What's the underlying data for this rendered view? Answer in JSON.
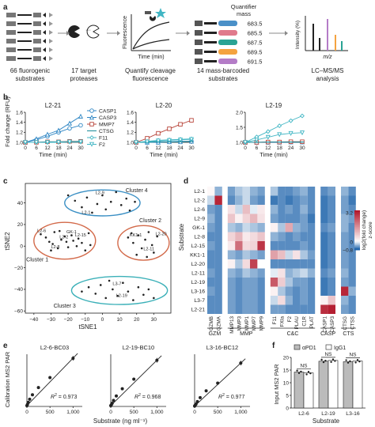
{
  "panel_a": {
    "letter": "a",
    "substrates_label": [
      "66 fluorogenic",
      "substrates"
    ],
    "proteases_label": [
      "17 target",
      "proteases"
    ],
    "fluor_label": [
      "Quantify cleavage",
      "fluorescence"
    ],
    "fluor_ylabel": "Fluorescence",
    "fluor_xlabel": "Time (min)",
    "mass_header": [
      "Quantifier",
      "mass"
    ],
    "masses": [
      "683.5",
      "685.5",
      "687.5",
      "689.5",
      "691.5"
    ],
    "mass_colors": [
      "#4a90c8",
      "#e07a8c",
      "#2aa394",
      "#f4a340",
      "#b47cc7"
    ],
    "barcoded_label": [
      "14 mass-barcoded",
      "substrates"
    ],
    "ms_ylabel": "Intensity (%)",
    "ms_xlabel": "m/z",
    "lcms_label": [
      "LC–MS/MS",
      "analysis"
    ]
  },
  "panel_b": {
    "letter": "b",
    "ylabel": "Fold change (RFU)",
    "xlabel": "Time (min)",
    "legend": [
      {
        "name": "CASP1",
        "color": "#2f86c4",
        "marker": "circle"
      },
      {
        "name": "CASP3",
        "color": "#2f86c4",
        "marker": "triangle"
      },
      {
        "name": "MMP7",
        "color": "#b8453a",
        "marker": "square"
      },
      {
        "name": "CTSG",
        "color": "#1a8a98",
        "marker": "line"
      },
      {
        "name": "F11",
        "color": "#41b6c4",
        "marker": "diamond"
      },
      {
        "name": "F2",
        "color": "#41b6c4",
        "marker": "triangle-down"
      }
    ]
  },
  "panel_c": {
    "letter": "c",
    "xlabel": "tSNE1",
    "ylabel": "tSNE2",
    "clusters": [
      "Cluster 4",
      "Cluster 2",
      "Cluster 1",
      "Cluster 3"
    ],
    "cluster_colors": [
      "#3a8fc4",
      "#d36a4a",
      "#d36a4a",
      "#3bb0b8"
    ],
    "point_labels": [
      "L2-6",
      "L2-1",
      "L2-9",
      "L2-2",
      "L2-8",
      "L2-15",
      "GK-1",
      "KK1-1",
      "L2-20",
      "L2-11",
      "L3-7",
      "L2-19"
    ]
  },
  "panel_d": {
    "letter": "d",
    "ylabel": "Substrate",
    "rows": [
      "L2-1",
      "L2-2",
      "L2-6",
      "L2-9",
      "GK-1",
      "L2-8",
      "L2-15",
      "KK1-1",
      "L2-20",
      "L2-11",
      "L2-19",
      "L3-16",
      "L3-7",
      "L2-21"
    ],
    "cols": [
      "GZMB",
      "GZMA",
      "MMP13",
      "MMP3",
      "MMP1",
      "MMP7",
      "MMP9",
      "F11",
      "FXIa",
      "F2",
      "PLAU",
      "C1R",
      "PLAT",
      "CASP1",
      "CASP3",
      "CTSG",
      "CTSS"
    ],
    "groups": [
      "GZM",
      "MMP",
      "C&C",
      "CASP",
      "CTS"
    ],
    "colorbar_title": [
      "log2(fold change)",
      "z-score"
    ],
    "colorbar_ticks": [
      "3.2",
      "0",
      "−0.8"
    ]
  },
  "panel_e": {
    "letter": "e",
    "ylabel": "Calibration MS2 PAR",
    "xlabel": "Substrate (ng ml⁻¹)",
    "xticks": [
      "0",
      "500",
      "1,000"
    ],
    "subplots": [
      {
        "title": "L2-6-BC03",
        "r2": "= 0.973"
      },
      {
        "title": "L2-19-BC10",
        "r2": "= 0.968"
      },
      {
        "title": "L3-16-BC12",
        "r2": "= 0.977"
      }
    ]
  },
  "panel_f": {
    "letter": "f",
    "ylabel": "Input MS2 PAR",
    "xlabel": "Substrate",
    "legend": [
      "αPD1",
      "IgG1"
    ],
    "categories": [
      "L2-6",
      "L2-19",
      "L3-16"
    ],
    "sig": [
      "NS",
      "NS",
      "NS"
    ],
    "yticks": [
      "0",
      "5",
      "10",
      "15",
      "20"
    ]
  },
  "chart_data": [
    {
      "type": "line",
      "title": "L2-21",
      "xlabel": "Time (min)",
      "ylabel": "Fold change (RFU)",
      "x": [
        0,
        6,
        12,
        18,
        24,
        30
      ],
      "ylim": [
        1.0,
        1.6
      ],
      "yticks": [
        1.0,
        1.2,
        1.4,
        1.6
      ],
      "series": [
        {
          "name": "CASP1",
          "values": [
            1.0,
            1.05,
            1.12,
            1.2,
            1.28,
            1.34
          ]
        },
        {
          "name": "CASP3",
          "values": [
            1.0,
            1.07,
            1.16,
            1.24,
            1.38,
            1.52
          ]
        },
        {
          "name": "MMP7",
          "values": [
            1.0,
            1.0,
            1.01,
            1.01,
            1.02,
            1.02
          ]
        },
        {
          "name": "CTSG",
          "values": [
            1.0,
            1.0,
            1.01,
            1.01,
            1.01,
            1.02
          ]
        },
        {
          "name": "F11",
          "values": [
            1.0,
            1.0,
            1.0,
            1.01,
            1.01,
            1.01
          ]
        },
        {
          "name": "F2",
          "values": [
            1.0,
            1.0,
            1.0,
            1.0,
            1.01,
            1.01
          ]
        }
      ]
    },
    {
      "type": "line",
      "title": "L2-20",
      "xlabel": "Time (min)",
      "ylabel": "Fold change (RFU)",
      "x": [
        0,
        6,
        12,
        18,
        24,
        30
      ],
      "ylim": [
        1.0,
        1.6
      ],
      "yticks": [
        1.0,
        1.2,
        1.4,
        1.6
      ],
      "series": [
        {
          "name": "CASP1",
          "values": [
            1.0,
            1.0,
            1.01,
            1.01,
            1.02,
            1.02
          ]
        },
        {
          "name": "CASP3",
          "values": [
            1.0,
            1.0,
            1.0,
            1.01,
            1.01,
            1.02
          ]
        },
        {
          "name": "MMP7",
          "values": [
            1.0,
            1.08,
            1.18,
            1.27,
            1.36,
            1.44
          ]
        },
        {
          "name": "CTSG",
          "values": [
            1.0,
            1.0,
            1.01,
            1.01,
            1.01,
            1.02
          ]
        },
        {
          "name": "F11",
          "values": [
            1.0,
            1.02,
            1.04,
            1.05,
            1.06,
            1.07
          ]
        },
        {
          "name": "F2",
          "values": [
            1.0,
            1.01,
            1.03,
            1.04,
            1.05,
            1.06
          ]
        }
      ]
    },
    {
      "type": "line",
      "title": "L2-19",
      "xlabel": "Time (min)",
      "ylabel": "Fold change (RFU)",
      "x": [
        0,
        6,
        12,
        18,
        24,
        30
      ],
      "ylim": [
        1.0,
        2.0
      ],
      "yticks": [
        1.0,
        1.5,
        2.0
      ],
      "series": [
        {
          "name": "CASP1",
          "values": [
            1.0,
            1.0,
            1.0,
            1.01,
            1.01,
            1.01
          ]
        },
        {
          "name": "CASP3",
          "values": [
            1.0,
            1.0,
            1.0,
            1.0,
            1.01,
            1.01
          ]
        },
        {
          "name": "MMP7",
          "values": [
            1.0,
            1.0,
            1.01,
            1.01,
            1.02,
            1.02
          ]
        },
        {
          "name": "CTSG",
          "values": [
            1.0,
            1.0,
            1.01,
            1.01,
            1.01,
            1.01
          ]
        },
        {
          "name": "F11",
          "values": [
            1.0,
            1.18,
            1.36,
            1.55,
            1.72,
            1.88
          ]
        },
        {
          "name": "F2",
          "values": [
            1.0,
            1.08,
            1.17,
            1.26,
            1.3,
            1.32
          ]
        }
      ]
    },
    {
      "type": "scatter",
      "title": "",
      "xlabel": "tSNE1",
      "ylabel": "tSNE2",
      "xlim": [
        -45,
        40
      ],
      "ylim": [
        -62,
        58
      ],
      "xticks": [
        -40,
        -30,
        -20,
        -10,
        0,
        10,
        20,
        30
      ],
      "yticks": [
        -60,
        -40,
        -20,
        0,
        20,
        40
      ],
      "points": [
        [
          -36,
          11
        ],
        [
          -33,
          8
        ],
        [
          -31,
          4
        ],
        [
          -29,
          2
        ],
        [
          -28,
          13
        ],
        [
          -26,
          -2
        ],
        [
          -24,
          6
        ],
        [
          -22,
          9
        ],
        [
          -21,
          4
        ],
        [
          -20,
          -1
        ],
        [
          -18,
          10
        ],
        [
          -17,
          5
        ],
        [
          -15,
          0
        ],
        [
          -14,
          7
        ],
        [
          -12,
          3
        ],
        [
          -10,
          -4
        ],
        [
          -8,
          12
        ],
        [
          -7,
          1
        ],
        [
          -25,
          14
        ],
        [
          -30,
          -4
        ],
        [
          -16,
          42
        ],
        [
          -12,
          36
        ],
        [
          -9,
          45
        ],
        [
          -6,
          31
        ],
        [
          -3,
          39
        ],
        [
          0,
          47
        ],
        [
          2,
          34
        ],
        [
          5,
          41
        ],
        [
          8,
          50
        ],
        [
          11,
          38
        ],
        [
          14,
          44
        ],
        [
          16,
          33
        ],
        [
          -20,
          47
        ],
        [
          19,
          41
        ],
        [
          15,
          8
        ],
        [
          18,
          3
        ],
        [
          21,
          10
        ],
        [
          23,
          -2
        ],
        [
          25,
          6
        ],
        [
          27,
          13
        ],
        [
          29,
          1
        ],
        [
          30,
          -6
        ],
        [
          32,
          9
        ],
        [
          20,
          -8
        ],
        [
          26,
          -10
        ],
        [
          17,
          12
        ],
        [
          -8,
          -38
        ],
        [
          -4,
          -44
        ],
        [
          -1,
          -36
        ],
        [
          2,
          -48
        ],
        [
          6,
          -40
        ],
        [
          9,
          -46
        ],
        [
          12,
          -34
        ],
        [
          15,
          -42
        ],
        [
          18,
          -50
        ],
        [
          21,
          -38
        ],
        [
          24,
          -45
        ],
        [
          27,
          -40
        ],
        [
          30,
          -48
        ],
        [
          4,
          -32
        ],
        [
          -12,
          -42
        ]
      ]
    },
    {
      "type": "heatmap",
      "title": "",
      "xlabel": "",
      "ylabel": "Substrate",
      "x": [
        "GZMB",
        "GZMA",
        "MMP13",
        "MMP3",
        "MMP1",
        "MMP7",
        "MMP9",
        "F11",
        "FXIa",
        "F2",
        "PLAU",
        "C1R",
        "PLAT",
        "CASP1",
        "CASP3",
        "CTSG",
        "CTSS"
      ],
      "y": [
        "L2-1",
        "L2-2",
        "L2-6",
        "L2-9",
        "GK-1",
        "L2-8",
        "L2-15",
        "KK1-1",
        "L2-20",
        "L2-11",
        "L2-19",
        "L3-16",
        "L3-7",
        "L2-21"
      ],
      "zlim": [
        -0.8,
        3.2
      ],
      "values": [
        [
          0.1,
          -0.4,
          -0.5,
          -0.3,
          -0.2,
          -0.4,
          -0.5,
          -0.3,
          -0.6,
          -0.6,
          -0.5,
          -0.4,
          -0.6,
          -0.6,
          -0.5,
          -0.4,
          -0.6
        ],
        [
          -0.2,
          3.0,
          -0.6,
          -0.4,
          -0.2,
          -0.5,
          -0.6,
          -0.7,
          -0.6,
          -0.7,
          -0.6,
          -0.5,
          -0.6,
          -0.7,
          -0.6,
          -0.5,
          -0.7
        ],
        [
          -0.5,
          -0.6,
          0.4,
          -0.2,
          0.9,
          -0.1,
          0.3,
          -0.4,
          -0.6,
          -0.5,
          -0.6,
          -0.4,
          -0.6,
          -0.7,
          -0.6,
          -0.5,
          -0.6
        ],
        [
          -0.4,
          -0.6,
          0.8,
          0.2,
          0.6,
          1.0,
          0.4,
          -0.5,
          -0.6,
          -0.6,
          -0.6,
          -0.5,
          -0.7,
          -0.7,
          -0.6,
          -0.4,
          -0.5
        ],
        [
          -0.5,
          -0.6,
          -0.3,
          -0.4,
          -0.2,
          -0.3,
          -0.4,
          0.2,
          -0.3,
          1.2,
          -0.4,
          -0.5,
          -0.6,
          -0.6,
          -0.5,
          -0.4,
          -0.6
        ],
        [
          -0.6,
          -0.6,
          0.6,
          1.0,
          0.3,
          0.5,
          0.8,
          -0.4,
          -0.5,
          -0.6,
          -0.5,
          -0.6,
          -0.6,
          -0.7,
          -0.6,
          -0.5,
          -0.6
        ],
        [
          -0.5,
          -0.6,
          0.3,
          2.0,
          0.5,
          0.6,
          2.8,
          -0.6,
          -0.6,
          -0.6,
          -0.6,
          -0.5,
          -0.6,
          -0.7,
          -0.6,
          -0.5,
          -0.6
        ],
        [
          -0.6,
          -0.6,
          -0.4,
          -0.5,
          -0.3,
          -0.4,
          -0.5,
          1.3,
          0.9,
          -0.2,
          0.4,
          -0.3,
          -0.5,
          -0.7,
          -0.6,
          -0.5,
          -0.6
        ],
        [
          -0.6,
          -0.6,
          0.2,
          -0.3,
          0.5,
          2.6,
          0.0,
          -0.6,
          -0.6,
          -0.6,
          -0.6,
          -0.6,
          -0.6,
          -0.7,
          -0.6,
          -0.5,
          -0.6
        ],
        [
          -0.5,
          -0.6,
          -0.4,
          -0.5,
          -0.3,
          -0.4,
          -0.5,
          -0.1,
          0.4,
          -0.4,
          -0.3,
          -0.2,
          -0.4,
          -0.6,
          -0.5,
          -0.4,
          -0.6
        ],
        [
          -0.6,
          -0.6,
          -0.5,
          -0.6,
          -0.5,
          -0.5,
          -0.6,
          2.3,
          0.7,
          -0.3,
          -0.5,
          -0.5,
          -0.6,
          -0.7,
          -0.6,
          -0.5,
          -0.6
        ],
        [
          -0.5,
          -0.6,
          -0.5,
          -0.6,
          -0.5,
          -0.5,
          -0.6,
          0.2,
          -0.3,
          -0.5,
          -0.6,
          -0.5,
          -0.6,
          -0.7,
          -0.6,
          3.0,
          -0.4
        ],
        [
          -0.6,
          -0.6,
          -0.5,
          -0.6,
          -0.5,
          -0.5,
          -0.6,
          -0.2,
          0.5,
          -0.4,
          -0.6,
          -0.5,
          -0.6,
          0.2,
          0.8,
          -0.4,
          -0.6
        ],
        [
          -0.6,
          -0.6,
          -0.5,
          -0.6,
          -0.5,
          -0.5,
          -0.6,
          -0.5,
          -0.5,
          -0.6,
          -0.6,
          -0.6,
          -0.6,
          2.9,
          3.1,
          -0.5,
          -0.6
        ]
      ]
    },
    {
      "type": "scatter",
      "title": "L2-6-BC03",
      "xlabel": "Substrate (ng ml⁻¹)",
      "ylabel": "Calibration MS2 PAR",
      "xlim": [
        0,
        1200
      ],
      "x": [
        0,
        12,
        30,
        60,
        120,
        250,
        500,
        1000
      ],
      "y": [
        0.2,
        0.5,
        1.0,
        1.8,
        2.9,
        4.7,
        7.2,
        12.0
      ]
    },
    {
      "type": "scatter",
      "title": "L2-19-BC10",
      "xlabel": "Substrate (ng ml⁻¹)",
      "ylabel": "Calibration MS2 PAR",
      "xlim": [
        0,
        1200
      ],
      "x": [
        0,
        12,
        30,
        60,
        120,
        250,
        500,
        1000
      ],
      "y": [
        0.2,
        0.4,
        0.8,
        1.5,
        2.6,
        4.4,
        6.8,
        11.5
      ]
    },
    {
      "type": "scatter",
      "title": "L3-16-BC12",
      "xlabel": "Substrate (ng ml⁻¹)",
      "ylabel": "Calibration MS2 PAR",
      "xlim": [
        0,
        1200
      ],
      "x": [
        0,
        12,
        30,
        60,
        120,
        250,
        500,
        1000
      ],
      "y": [
        0.1,
        0.3,
        0.6,
        1.2,
        2.2,
        3.9,
        5.8,
        10.8
      ]
    },
    {
      "type": "bar",
      "title": "",
      "xlabel": "Substrate",
      "ylabel": "Input MS2 PAR",
      "categories": [
        "L2-6",
        "L2-19",
        "L3-16"
      ],
      "ylim": [
        0,
        20
      ],
      "series": [
        {
          "name": "αPD1",
          "values": [
            14.2,
            18.5,
            18.3
          ]
        },
        {
          "name": "IgG1",
          "values": [
            13.9,
            18.8,
            18.6
          ]
        }
      ]
    }
  ]
}
